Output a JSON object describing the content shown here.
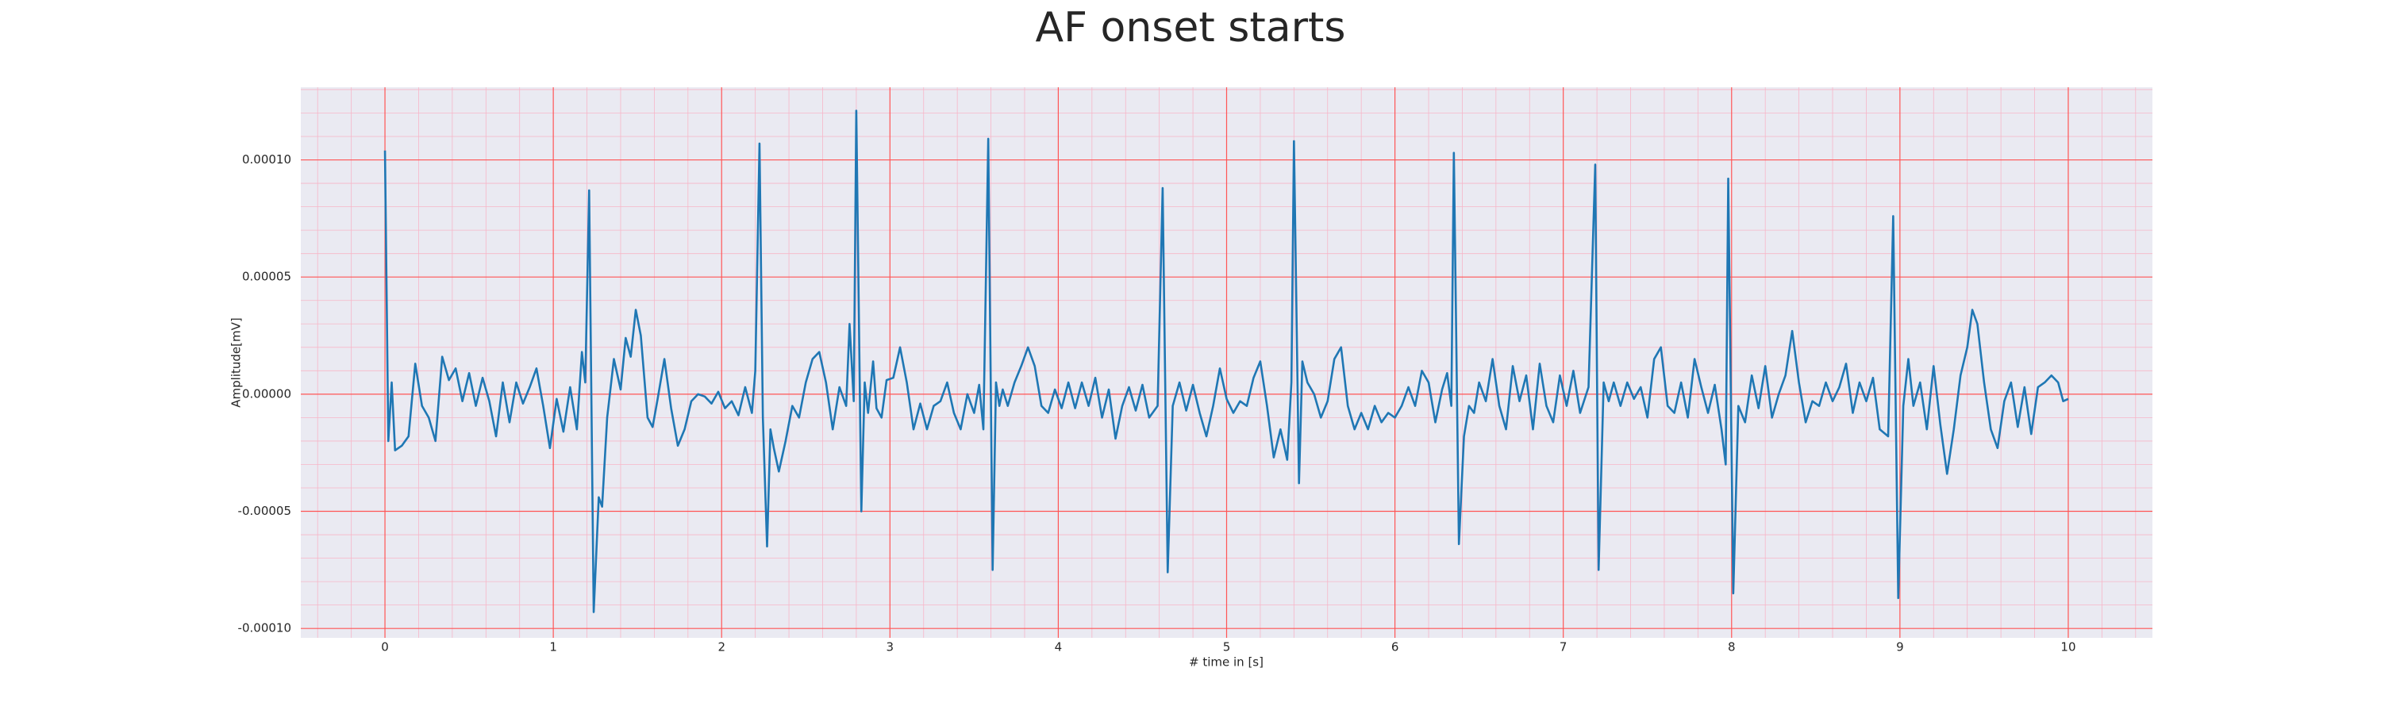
{
  "chart_data": {
    "type": "line",
    "title": "AF onset starts",
    "xlabel": "# time in [s]",
    "ylabel": "Amplitude[mV]",
    "color": "#1f77b4",
    "grid": true,
    "minor_grid": true,
    "xlim": [
      -0.5,
      10.5
    ],
    "ylim": [
      -0.000104,
      0.000131
    ],
    "xticks": [
      0,
      1,
      2,
      3,
      4,
      5,
      6,
      7,
      8,
      9,
      10
    ],
    "yticks": [
      {
        "value": -0.0001,
        "label": "-0.00010"
      },
      {
        "value": -5e-05,
        "label": "-0.00005"
      },
      {
        "value": 0,
        "label": "0.00000"
      },
      {
        "value": 5e-05,
        "label": "0.00005"
      },
      {
        "value": 0.0001,
        "label": "0.00010"
      }
    ],
    "x": [
      0,
      0.02,
      0.04,
      0.06,
      0.1,
      0.14,
      0.18,
      0.22,
      0.26,
      0.3,
      0.34,
      0.38,
      0.42,
      0.46,
      0.5,
      0.54,
      0.58,
      0.62,
      0.66,
      0.7,
      0.74,
      0.78,
      0.82,
      0.86,
      0.9,
      0.94,
      0.98,
      1.02,
      1.06,
      1.1,
      1.14,
      1.17,
      1.19,
      1.213,
      1.24,
      1.27,
      1.29,
      1.32,
      1.36,
      1.4,
      1.43,
      1.46,
      1.49,
      1.52,
      1.56,
      1.59,
      1.62,
      1.66,
      1.7,
      1.74,
      1.78,
      1.82,
      1.86,
      1.9,
      1.94,
      1.98,
      2.02,
      2.06,
      2.1,
      2.14,
      2.18,
      2.2,
      2.225,
      2.245,
      2.27,
      2.29,
      2.31,
      2.34,
      2.38,
      2.42,
      2.46,
      2.5,
      2.54,
      2.58,
      2.62,
      2.66,
      2.7,
      2.74,
      2.76,
      2.785,
      2.8,
      2.83,
      2.85,
      2.87,
      2.9,
      2.92,
      2.95,
      2.98,
      3.02,
      3.06,
      3.1,
      3.14,
      3.18,
      3.22,
      3.26,
      3.3,
      3.34,
      3.38,
      3.42,
      3.46,
      3.5,
      3.53,
      3.555,
      3.584,
      3.61,
      3.63,
      3.65,
      3.67,
      3.7,
      3.74,
      3.78,
      3.82,
      3.86,
      3.9,
      3.94,
      3.98,
      4.02,
      4.06,
      4.1,
      4.14,
      4.18,
      4.22,
      4.26,
      4.3,
      4.34,
      4.38,
      4.42,
      4.46,
      4.5,
      4.54,
      4.59,
      4.62,
      4.65,
      4.68,
      4.72,
      4.76,
      4.8,
      4.84,
      4.88,
      4.92,
      4.96,
      5,
      5.04,
      5.08,
      5.12,
      5.16,
      5.2,
      5.24,
      5.28,
      5.32,
      5.36,
      5.385,
      5.4,
      5.43,
      5.45,
      5.48,
      5.52,
      5.56,
      5.6,
      5.64,
      5.68,
      5.72,
      5.76,
      5.8,
      5.84,
      5.88,
      5.92,
      5.96,
      6,
      6.04,
      6.08,
      6.12,
      6.16,
      6.2,
      6.24,
      6.28,
      6.31,
      6.335,
      6.35,
      6.38,
      6.41,
      6.44,
      6.47,
      6.5,
      6.54,
      6.58,
      6.62,
      6.66,
      6.7,
      6.74,
      6.78,
      6.82,
      6.86,
      6.9,
      6.94,
      6.98,
      7.02,
      7.06,
      7.1,
      7.15,
      7.19,
      7.21,
      7.24,
      7.27,
      7.3,
      7.34,
      7.38,
      7.42,
      7.46,
      7.5,
      7.54,
      7.58,
      7.62,
      7.66,
      7.7,
      7.74,
      7.78,
      7.82,
      7.86,
      7.9,
      7.94,
      7.965,
      7.98,
      8.01,
      8.04,
      8.08,
      8.12,
      8.16,
      8.2,
      8.24,
      8.28,
      8.32,
      8.36,
      8.4,
      8.44,
      8.48,
      8.52,
      8.56,
      8.6,
      8.64,
      8.68,
      8.72,
      8.76,
      8.8,
      8.84,
      8.88,
      8.93,
      8.96,
      8.99,
      9.02,
      9.05,
      9.08,
      9.12,
      9.16,
      9.2,
      9.24,
      9.28,
      9.32,
      9.36,
      9.4,
      9.43,
      9.46,
      9.5,
      9.54,
      9.58,
      9.62,
      9.66,
      9.7,
      9.74,
      9.78,
      9.82,
      9.86,
      9.9,
      9.94,
      9.97,
      10
    ],
    "values": [
      0.000104,
      -2e-05,
      5e-06,
      -2.4e-05,
      -2.2e-05,
      -1.8e-05,
      1.3e-05,
      -5e-06,
      -1e-05,
      -2e-05,
      1.6e-05,
      6e-06,
      1.1e-05,
      -3e-06,
      9e-06,
      -5e-06,
      7e-06,
      -3e-06,
      -1.8e-05,
      5e-06,
      -1.2e-05,
      5e-06,
      -4e-06,
      3e-06,
      1.1e-05,
      -5e-06,
      -2.3e-05,
      -2e-06,
      -1.6e-05,
      3e-06,
      -1.5e-05,
      1.8e-05,
      5e-06,
      8.7e-05,
      -9.3e-05,
      -4.4e-05,
      -4.8e-05,
      -1e-05,
      1.5e-05,
      2e-06,
      2.4e-05,
      1.6e-05,
      3.6e-05,
      2.5e-05,
      -1e-05,
      -1.4e-05,
      -2e-06,
      1.5e-05,
      -6e-06,
      -2.2e-05,
      -1.5e-05,
      -3e-06,
      0,
      -1e-06,
      -4e-06,
      1e-06,
      -6e-06,
      -3e-06,
      -9e-06,
      3e-06,
      -8e-06,
      1e-05,
      0.000107,
      -1e-05,
      -6.5e-05,
      -1.5e-05,
      -2.3e-05,
      -3.3e-05,
      -2e-05,
      -5e-06,
      -1e-05,
      5e-06,
      1.5e-05,
      1.8e-05,
      5e-06,
      -1.5e-05,
      3e-06,
      -5e-06,
      3e-05,
      -3e-06,
      0.000121,
      -5e-05,
      5e-06,
      -8e-06,
      1.4e-05,
      -6e-06,
      -1e-05,
      6e-06,
      7e-06,
      2e-05,
      5e-06,
      -1.5e-05,
      -4e-06,
      -1.5e-05,
      -5e-06,
      -3e-06,
      5e-06,
      -8e-06,
      -1.5e-05,
      0,
      -8e-06,
      4e-06,
      -1.5e-05,
      0.000109,
      -7.5e-05,
      5e-06,
      -5e-06,
      2e-06,
      -5e-06,
      5e-06,
      1.2e-05,
      2e-05,
      1.2e-05,
      -5e-06,
      -8e-06,
      2e-06,
      -6e-06,
      5e-06,
      -6e-06,
      5e-06,
      -5e-06,
      7e-06,
      -1e-05,
      2e-06,
      -1.9e-05,
      -5e-06,
      3e-06,
      -7e-06,
      4e-06,
      -1e-05,
      -5e-06,
      8.8e-05,
      -7.6e-05,
      -5e-06,
      5e-06,
      -7e-06,
      4e-06,
      -8e-06,
      -1.8e-05,
      -5e-06,
      1.1e-05,
      -2e-06,
      -8e-06,
      -3e-06,
      -5e-06,
      7e-06,
      1.4e-05,
      -5e-06,
      -2.7e-05,
      -1.5e-05,
      -2.8e-05,
      5e-06,
      0.000108,
      -3.8e-05,
      1.4e-05,
      5e-06,
      0,
      -1e-05,
      -3e-06,
      1.5e-05,
      2e-05,
      -5e-06,
      -1.5e-05,
      -8e-06,
      -1.5e-05,
      -5e-06,
      -1.2e-05,
      -8e-06,
      -1e-05,
      -5e-06,
      3e-06,
      -5e-06,
      1e-05,
      5e-06,
      -1.2e-05,
      2e-06,
      9e-06,
      -5e-06,
      0.000103,
      -6.4e-05,
      -1.8e-05,
      -5e-06,
      -8e-06,
      5e-06,
      -3e-06,
      1.5e-05,
      -5e-06,
      -1.5e-05,
      1.2e-05,
      -3e-06,
      8e-06,
      -1.5e-05,
      1.3e-05,
      -5e-06,
      -1.2e-05,
      8e-06,
      -5e-06,
      1e-05,
      -8e-06,
      3e-06,
      9.8e-05,
      -7.5e-05,
      5e-06,
      -3e-06,
      5e-06,
      -5e-06,
      5e-06,
      -2e-06,
      3e-06,
      -1e-05,
      1.5e-05,
      2e-05,
      -5e-06,
      -8e-06,
      5e-06,
      -1e-05,
      1.5e-05,
      3e-06,
      -8e-06,
      4e-06,
      -1.5e-05,
      -3e-05,
      9.2e-05,
      -8.5e-05,
      -5e-06,
      -1.2e-05,
      8e-06,
      -6e-06,
      1.2e-05,
      -1e-05,
      0,
      8e-06,
      2.7e-05,
      5e-06,
      -1.2e-05,
      -3e-06,
      -5e-06,
      5e-06,
      -3e-06,
      3e-06,
      1.3e-05,
      -8e-06,
      5e-06,
      -3e-06,
      7e-06,
      -1.5e-05,
      -1.8e-05,
      7.6e-05,
      -8.7e-05,
      -5e-06,
      1.5e-05,
      -5e-06,
      5e-06,
      -1.5e-05,
      1.2e-05,
      -1.3e-05,
      -3.4e-05,
      -1.5e-05,
      8e-06,
      2e-05,
      3.6e-05,
      3e-05,
      5e-06,
      -1.5e-05,
      -2.3e-05,
      -3e-06,
      5e-06,
      -1.4e-05,
      3e-06,
      -1.7e-05,
      3e-06,
      5e-06,
      8e-06,
      5e-06,
      -3e-06,
      -2e-06
    ]
  }
}
